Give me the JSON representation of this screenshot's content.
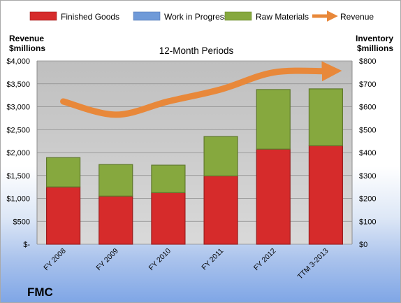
{
  "company": "FMC",
  "chart_data": {
    "type": "bar",
    "subtitle": "12-Month Periods",
    "categories": [
      "FY 2008",
      "FY 2009",
      "FY 2010",
      "FY 2011",
      "FY 2012",
      "TTM 3-2013"
    ],
    "series": [
      {
        "name": "Finished Goods",
        "axis": "right",
        "stack": "inventory",
        "color": "#d62b2b",
        "values": [
          250,
          210,
          225,
          298,
          415,
          430
        ]
      },
      {
        "name": "Work in Progress",
        "axis": "right",
        "stack": "inventory",
        "color": "#6f9ad8",
        "values": [
          0,
          0,
          0,
          0,
          0,
          0
        ]
      },
      {
        "name": "Raw Materials",
        "axis": "right",
        "stack": "inventory",
        "color": "#86a83e",
        "values": [
          128,
          138,
          120,
          172,
          260,
          248
        ]
      },
      {
        "name": "Revenue",
        "axis": "left",
        "type": "line",
        "color": "#e8883a",
        "values": [
          3115,
          2826,
          3116,
          3378,
          3748,
          3776
        ]
      }
    ],
    "yleft": {
      "label_line1": "Revenue",
      "label_line2": "$millions",
      "ylim": [
        0,
        4000
      ],
      "ticks": [
        "$-",
        "$500",
        "$1,000",
        "$1,500",
        "$2,000",
        "$2,500",
        "$3,000",
        "$3,500",
        "$4,000"
      ]
    },
    "yright": {
      "label_line1": "Inventory",
      "label_line2": "$millions",
      "ylim": [
        0,
        800
      ],
      "ticks": [
        "$0",
        "$100",
        "$200",
        "$300",
        "$400",
        "$500",
        "$600",
        "$700",
        "$800"
      ]
    },
    "grid": true,
    "legend": "top"
  }
}
